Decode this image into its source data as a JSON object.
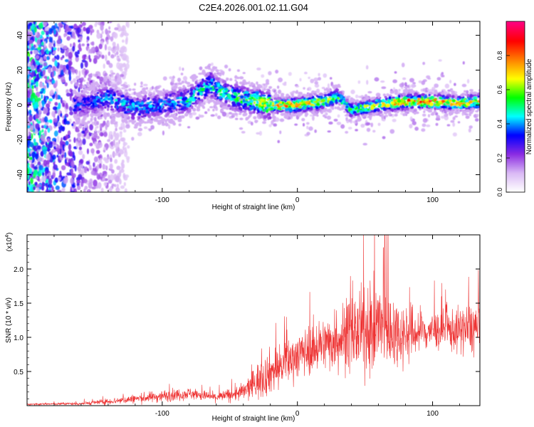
{
  "title": "C2E4.2026.001.02.11.G04",
  "chart_data": [
    {
      "type": "heatmap",
      "name": "spectrogram",
      "xlabel": "Height of straight line (km)",
      "ylabel": "Frequency (Hz)",
      "xlim": [
        -200,
        135
      ],
      "ylim": [
        -50,
        48
      ],
      "x_ticks": [
        -100,
        0,
        100
      ],
      "x_tick_labels": [
        "-100",
        "0",
        "100"
      ],
      "y_ticks": [
        -40,
        -20,
        0,
        20,
        40
      ],
      "y_tick_labels": [
        "-40",
        "-20",
        "0",
        "20",
        "40"
      ],
      "colorbar": {
        "label": "Normalized spectral amplitude",
        "range": [
          0,
          1
        ],
        "ticks": [
          0.0,
          0.2,
          0.4,
          0.6,
          0.8
        ],
        "tick_labels": [
          "0.0",
          "0.2",
          "0.4",
          "0.6",
          "0.8"
        ],
        "colors": [
          "#ffffff",
          "#d9b8f5",
          "#8a2be2",
          "#0000ff",
          "#00ffff",
          "#00ff00",
          "#ffff00",
          "#ff8000",
          "#ff0000",
          "#ff0080"
        ]
      },
      "ridge": {
        "x": [
          -160,
          -140,
          -120,
          -100,
          -80,
          -65,
          -50,
          -35,
          -20,
          0,
          20,
          30,
          40,
          60,
          80,
          100,
          120,
          135
        ],
        "freq": [
          0,
          4,
          -2,
          0,
          3,
          12,
          5,
          3,
          0,
          0,
          2,
          5,
          -3,
          0,
          2,
          2,
          1,
          2
        ],
        "peak": [
          0.35,
          0.45,
          0.45,
          0.4,
          0.5,
          0.5,
          0.55,
          0.6,
          0.75,
          0.8,
          0.7,
          0.6,
          0.55,
          0.7,
          0.85,
          0.85,
          0.75,
          0.7
        ]
      }
    },
    {
      "type": "line",
      "name": "snr",
      "xlabel": "Height of straight line (km)",
      "ylabel": "SNR (10 * v/v)",
      "multiplier_label": "(x10",
      "multiplier_exp": "4",
      "xlim": [
        -200,
        135
      ],
      "ylim": [
        0,
        2.5
      ],
      "x_ticks": [
        -100,
        0,
        100
      ],
      "x_tick_labels": [
        "-100",
        "0",
        "100"
      ],
      "y_ticks": [
        0.5,
        1.0,
        1.5,
        2.0
      ],
      "y_tick_labels": [
        "0.5",
        "1.0",
        "1.5",
        "2.0"
      ],
      "color": "#ee3333",
      "envelope": {
        "x": [
          -200,
          -160,
          -140,
          -120,
          -100,
          -80,
          -60,
          -40,
          -30,
          -20,
          -10,
          0,
          20,
          40,
          60,
          80,
          100,
          120,
          135
        ],
        "mean": [
          0.02,
          0.03,
          0.06,
          0.1,
          0.14,
          0.18,
          0.12,
          0.2,
          0.35,
          0.5,
          0.6,
          0.75,
          0.9,
          1.05,
          1.15,
          1.05,
          1.1,
          1.1,
          1.15
        ],
        "spread": [
          0.01,
          0.02,
          0.04,
          0.06,
          0.08,
          0.08,
          0.06,
          0.12,
          0.25,
          0.3,
          0.3,
          0.3,
          0.35,
          0.5,
          0.6,
          0.4,
          0.25,
          0.3,
          0.4
        ]
      }
    }
  ]
}
